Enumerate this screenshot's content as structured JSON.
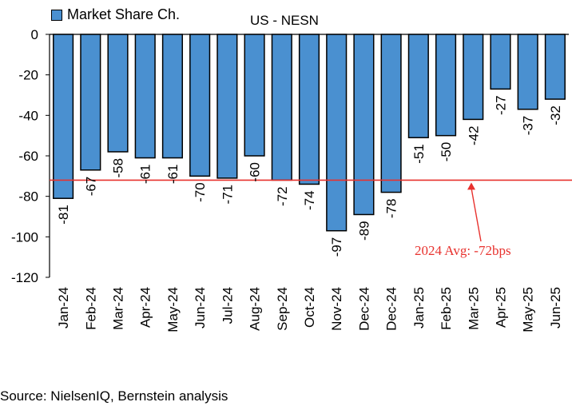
{
  "legend": {
    "label": "Market Share Ch.",
    "color": "#4a90d0"
  },
  "source": "Source: NielsenIQ, Bernstein analysis",
  "avg_label": "2024 Avg: -72bps",
  "chart_data": {
    "type": "bar",
    "title": "US - NESN",
    "categories": [
      "Jan-24",
      "Feb-24",
      "Mar-24",
      "Apr-24",
      "May-24",
      "Jun-24",
      "Jul-24",
      "Aug-24",
      "Sep-24",
      "Oct-24",
      "Nov-24",
      "Dec-24",
      "Dec-24",
      "Jan-25",
      "Feb-25",
      "Mar-25",
      "Apr-25",
      "May-25",
      "Jun-25"
    ],
    "series": [
      {
        "name": "Market Share Ch.",
        "values": [
          -81,
          -67,
          -58,
          -61,
          -61,
          -70,
          -71,
          -60,
          -72,
          -74,
          -97,
          -89,
          -78,
          -51,
          -50,
          -42,
          -27,
          -37,
          -32
        ]
      }
    ],
    "reference_line": {
      "value": -72,
      "label": "2024 Avg: -72bps",
      "color": "#e8322e"
    },
    "ylim": [
      -120,
      0
    ],
    "yticks": [
      0,
      -20,
      -40,
      -60,
      -80,
      -100,
      -120
    ],
    "colors": {
      "bar": "#4a90d0",
      "bar_border": "#000000",
      "reference": "#e8322e"
    },
    "grid": false,
    "legend_position": "top-left"
  }
}
